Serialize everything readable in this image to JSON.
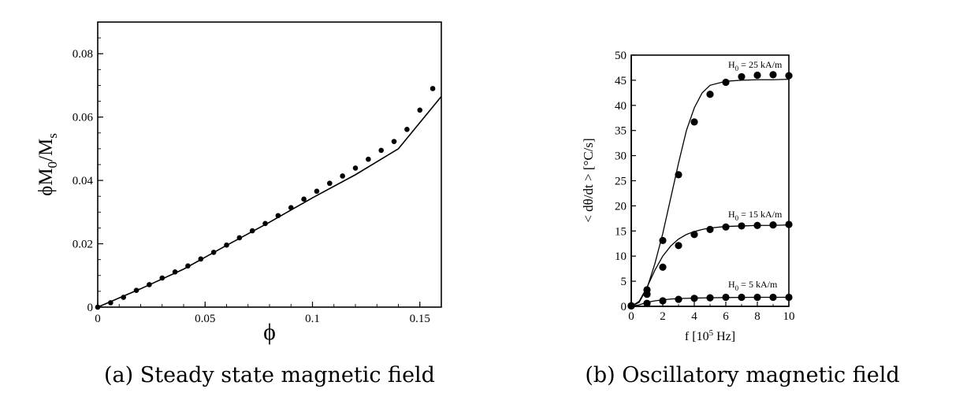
{
  "chart_data": [
    {
      "type": "scatter",
      "caption": "(a) Steady state magnetic field",
      "xlabel": "ϕ",
      "ylabel": "ϕM0/Ms",
      "ylabel_parts": {
        "main": "ϕM",
        "sub1": "0",
        "mid": "/M",
        "sub2": "s"
      },
      "xlim": [
        0,
        0.16
      ],
      "ylim": [
        0,
        0.09
      ],
      "xticks": [
        0,
        0.05,
        0.1,
        0.15
      ],
      "xtick_labels": [
        "0",
        "0.05",
        "0.1",
        "0.15"
      ],
      "yticks": [
        0,
        0.02,
        0.04,
        0.06,
        0.08
      ],
      "ytick_labels": [
        "0",
        "0.02",
        "0.04",
        "0.06",
        "0.08"
      ],
      "grid": false,
      "legend": "none",
      "series": [
        {
          "kind": "points",
          "x": [
            0.0,
            0.006,
            0.012,
            0.018,
            0.024,
            0.03,
            0.036,
            0.042,
            0.048,
            0.054,
            0.06,
            0.066,
            0.072,
            0.078,
            0.084,
            0.09,
            0.096,
            0.102,
            0.108,
            0.114,
            0.12,
            0.126,
            0.132,
            0.138,
            0.144,
            0.15,
            0.156
          ],
          "y": [
            0.0,
            0.0014,
            0.0031,
            0.0053,
            0.0071,
            0.0092,
            0.0111,
            0.013,
            0.0152,
            0.0173,
            0.0196,
            0.0219,
            0.0241,
            0.0264,
            0.0289,
            0.0314,
            0.0341,
            0.0366,
            0.0391,
            0.0414,
            0.0439,
            0.0467,
            0.0495,
            0.0523,
            0.0561,
            0.0622,
            0.069
          ]
        },
        {
          "kind": "line",
          "x": [
            0.0,
            0.02,
            0.04,
            0.06,
            0.08,
            0.1,
            0.12,
            0.14,
            0.16
          ],
          "y": [
            0.0,
            0.0058,
            0.012,
            0.0195,
            0.0268,
            0.0345,
            0.0418,
            0.05,
            0.0665
          ]
        }
      ]
    },
    {
      "type": "scatter",
      "caption": "(b) Oscillatory magnetic field",
      "xlabel": "f [10^5 Hz]",
      "xlabel_parts": {
        "pre": "f [10",
        "sup": "5",
        "post": " Hz]"
      },
      "ylabel": "< dθ/dt > [°C/s]",
      "xlim": [
        0,
        10
      ],
      "ylim": [
        0,
        50
      ],
      "xticks": [
        0,
        2,
        4,
        6,
        8,
        10
      ],
      "xtick_labels": [
        "0",
        "2",
        "4",
        "6",
        "8",
        "10"
      ],
      "yticks": [
        0,
        5,
        10,
        15,
        20,
        25,
        30,
        35,
        40,
        45,
        50
      ],
      "ytick_labels": [
        "0",
        "5",
        "10",
        "15",
        "20",
        "25",
        "30",
        "35",
        "40",
        "45",
        "50"
      ],
      "grid": false,
      "legend": "none",
      "annotations": [
        {
          "label": "H0 = 25 kA/m",
          "parts": {
            "pre": "H",
            "sub": "0",
            "post": " = 25 kA/m"
          },
          "at": [
            6.2,
            48.5
          ]
        },
        {
          "label": "H0 = 15 kA/m",
          "parts": {
            "pre": "H",
            "sub": "0",
            "post": " = 15 kA/m"
          },
          "at": [
            6.2,
            18.5
          ]
        },
        {
          "label": "H0 = 5 kA/m",
          "parts": {
            "pre": "H",
            "sub": "0",
            "post": " = 5 kA/m"
          },
          "at": [
            6.2,
            4.0
          ]
        }
      ],
      "series": [
        {
          "label_index": 0,
          "points": {
            "x": [
              0,
              1,
              2,
              3,
              4,
              5,
              6,
              7,
              8,
              9,
              10
            ],
            "y": [
              0.1,
              3.3,
              13.1,
              26.2,
              36.7,
              42.2,
              44.6,
              45.7,
              46.0,
              46.1,
              45.9
            ]
          },
          "fit": {
            "x": [
              0,
              0.5,
              1,
              1.5,
              2,
              2.5,
              3,
              3.5,
              4,
              4.5,
              5,
              6,
              7,
              8,
              9,
              10
            ],
            "y": [
              0,
              0.8,
              3.6,
              8.5,
              14.5,
              21.5,
              28.5,
              35.0,
              39.5,
              42.5,
              44.0,
              44.8,
              45.0,
              45.1,
              45.1,
              45.2
            ]
          }
        },
        {
          "label_index": 1,
          "points": {
            "x": [
              0,
              1,
              2,
              3,
              4,
              5,
              6,
              7,
              8,
              9,
              10
            ],
            "y": [
              0.1,
              2.4,
              7.8,
              12.1,
              14.3,
              15.3,
              15.8,
              16.0,
              16.1,
              16.2,
              16.3
            ]
          },
          "fit": {
            "x": [
              0,
              0.5,
              1,
              1.5,
              2,
              2.5,
              3,
              3.5,
              4,
              4.5,
              5,
              6,
              7,
              8,
              9,
              10
            ],
            "y": [
              0,
              1.0,
              3.8,
              7.2,
              10.0,
              12.0,
              13.4,
              14.3,
              14.9,
              15.3,
              15.6,
              15.9,
              16.0,
              16.1,
              16.1,
              16.2
            ]
          }
        },
        {
          "label_index": 2,
          "points": {
            "x": [
              0,
              1,
              2,
              3,
              4,
              5,
              6,
              7,
              8,
              9,
              10
            ],
            "y": [
              0.1,
              0.6,
              1.1,
              1.4,
              1.6,
              1.7,
              1.8,
              1.8,
              1.8,
              1.8,
              1.8
            ]
          },
          "fit": {
            "x": [
              0,
              0.5,
              1,
              1.5,
              2,
              2.5,
              3,
              4,
              5,
              6,
              7,
              8,
              9,
              10
            ],
            "y": [
              0,
              0.3,
              0.8,
              1.1,
              1.3,
              1.45,
              1.55,
              1.65,
              1.7,
              1.75,
              1.78,
              1.8,
              1.8,
              1.8
            ]
          }
        }
      ]
    }
  ]
}
